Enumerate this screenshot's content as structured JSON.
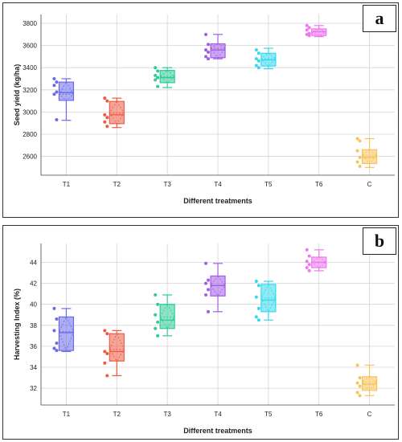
{
  "chart_data": [
    {
      "panel_label": "a",
      "type": "box",
      "categories": [
        "T1",
        "T2",
        "T3",
        "T4",
        "T5",
        "T6",
        "C"
      ],
      "colors": [
        "#6b6bea",
        "#ee5b43",
        "#2ecc9a",
        "#a35ce8",
        "#34d9ef",
        "#f076ef",
        "#f8c45a"
      ],
      "xlabel": "Different treatments",
      "ylabel": "Seed  yield (kg/ha)",
      "ylim": [
        2430,
        3880
      ],
      "yticks": [
        2600,
        2800,
        3000,
        3200,
        3400,
        3600,
        3800
      ],
      "boxes": [
        {
          "min": 2925,
          "q1": 3105,
          "median": 3175,
          "q3": 3270,
          "max": 3300,
          "mean": 3160
        },
        {
          "min": 2860,
          "q1": 2895,
          "median": 2975,
          "q3": 3095,
          "max": 3125,
          "mean": 2990
        },
        {
          "min": 3220,
          "q1": 3265,
          "median": 3310,
          "q3": 3375,
          "max": 3400,
          "mean": 3320
        },
        {
          "min": 3480,
          "q1": 3490,
          "median": 3560,
          "q3": 3615,
          "max": 3700,
          "mean": 3575
        },
        {
          "min": 3390,
          "q1": 3415,
          "median": 3470,
          "q3": 3530,
          "max": 3575,
          "mean": 3480
        },
        {
          "min": 3680,
          "q1": 3690,
          "median": 3725,
          "q3": 3750,
          "max": 3780,
          "mean": 3720
        },
        {
          "min": 2500,
          "q1": 2535,
          "median": 2590,
          "q3": 2660,
          "max": 2760,
          "mean": 2610
        }
      ],
      "points": [
        [
          3300,
          3270,
          3240,
          3180,
          3160,
          2930
        ],
        [
          3125,
          3100,
          2975,
          2950,
          2910,
          2870
        ],
        [
          3400,
          3370,
          3330,
          3310,
          3290,
          3230
        ],
        [
          3700,
          3610,
          3560,
          3540,
          3500,
          3480
        ],
        [
          3560,
          3530,
          3480,
          3460,
          3420,
          3400
        ],
        [
          3780,
          3760,
          3740,
          3710,
          3700,
          3690
        ],
        [
          2760,
          2740,
          2650,
          2590,
          2550,
          2510
        ]
      ]
    },
    {
      "panel_label": "b",
      "type": "box",
      "categories": [
        "T1",
        "T2",
        "T3",
        "T4",
        "T5",
        "T6",
        "C"
      ],
      "colors": [
        "#6b6bea",
        "#ee5b43",
        "#2ecc9a",
        "#a35ce8",
        "#34d9ef",
        "#f076ef",
        "#f8c45a"
      ],
      "xlabel": "Different treatments",
      "ylabel": "Harvesting Index (%)",
      "ylim": [
        30.4,
        45.8
      ],
      "yticks": [
        32,
        34,
        36,
        38,
        40,
        42,
        44
      ],
      "boxes": [
        {
          "min": 35.5,
          "q1": 35.6,
          "median": 37.3,
          "q3": 38.8,
          "max": 39.6,
          "mean": 37.4
        },
        {
          "min": 33.2,
          "q1": 34.6,
          "median": 35.5,
          "q3": 37.2,
          "max": 37.5,
          "mean": 35.7
        },
        {
          "min": 37.0,
          "q1": 37.7,
          "median": 38.5,
          "q3": 40.0,
          "max": 40.9,
          "mean": 38.8
        },
        {
          "min": 39.3,
          "q1": 40.8,
          "median": 41.8,
          "q3": 42.7,
          "max": 43.9,
          "mean": 41.8
        },
        {
          "min": 38.5,
          "q1": 39.3,
          "median": 40.4,
          "q3": 41.9,
          "max": 42.2,
          "mean": 40.6
        },
        {
          "min": 43.2,
          "q1": 43.5,
          "median": 44.0,
          "q3": 44.5,
          "max": 45.2,
          "mean": 44.0
        },
        {
          "min": 31.3,
          "q1": 31.8,
          "median": 32.4,
          "q3": 33.1,
          "max": 34.2,
          "mean": 32.6
        }
      ],
      "points": [
        [
          39.6,
          38.6,
          37.5,
          36.3,
          35.8,
          35.6
        ],
        [
          37.5,
          37.2,
          35.5,
          35.3,
          34.4,
          33.2
        ],
        [
          40.9,
          40.0,
          39.0,
          38.3,
          37.7,
          37.0
        ],
        [
          43.9,
          42.3,
          42.0,
          41.4,
          40.9,
          39.3
        ],
        [
          42.2,
          41.8,
          40.7,
          39.6,
          38.8,
          38.5
        ],
        [
          45.2,
          44.6,
          44.1,
          43.8,
          43.5,
          43.2
        ],
        [
          34.2,
          33.0,
          32.5,
          32.2,
          31.6,
          31.3
        ]
      ]
    }
  ]
}
